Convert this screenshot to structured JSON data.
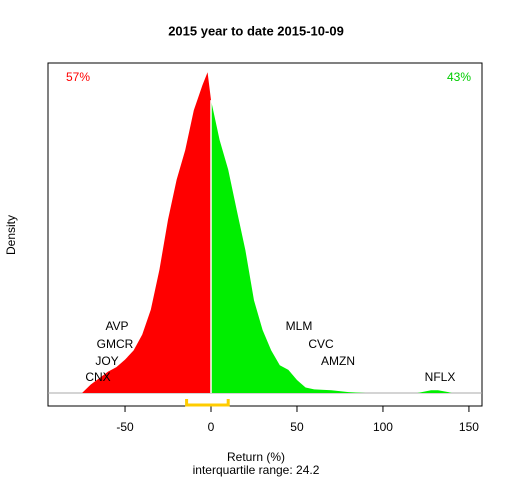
{
  "chart_data": {
    "type": "density",
    "title": "2015  year to date 2015-10-09",
    "xlabel": "Return (%)",
    "ylabel": "Density",
    "subtitle": "interquartile range: 24.2",
    "left_share": {
      "text": "57%",
      "color": "#ff0000"
    },
    "right_share": {
      "text": "43%",
      "color": "#00cc00"
    },
    "xlim": [
      -94.8,
      157.6
    ],
    "ylim": [
      -0.0014,
      0.0356
    ],
    "xticks": [
      -50,
      0,
      50,
      100,
      150
    ],
    "series": [
      {
        "color": "#ff0000",
        "x": [
          -75,
          -70,
          -65,
          -60,
          -55,
          -50,
          -45,
          -40,
          -35,
          -30,
          -25,
          -20,
          -15,
          -10,
          -5,
          -2,
          0
        ],
        "values": [
          0,
          0.0009,
          0.0016,
          0.0023,
          0.0028,
          0.0036,
          0.0046,
          0.0063,
          0.009,
          0.0133,
          0.0187,
          0.023,
          0.0262,
          0.0305,
          0.0332,
          0.0346,
          0.0316
        ]
      },
      {
        "color": "#00ee00",
        "x": [
          0,
          5,
          10,
          15,
          20,
          25,
          30,
          35,
          40,
          45,
          50,
          55,
          60,
          70,
          80,
          90,
          120,
          128,
          132,
          138,
          140
        ],
        "values": [
          0.0316,
          0.0273,
          0.0241,
          0.0197,
          0.0154,
          0.01,
          0.0068,
          0.0046,
          0.003,
          0.0025,
          0.0014,
          0.0006,
          0.0004,
          0.0003,
          0.0001,
          0,
          0,
          0.0003,
          0.0003,
          0.0001,
          0
        ]
      }
    ],
    "quartiles": [
      -14.2,
      10
    ],
    "quartile_color": "#ffcc00",
    "annotations": [
      "AVP",
      "GMCR",
      "JOY",
      "CNX",
      "MLM",
      "CVC",
      "AMZN",
      "NFLX"
    ]
  }
}
